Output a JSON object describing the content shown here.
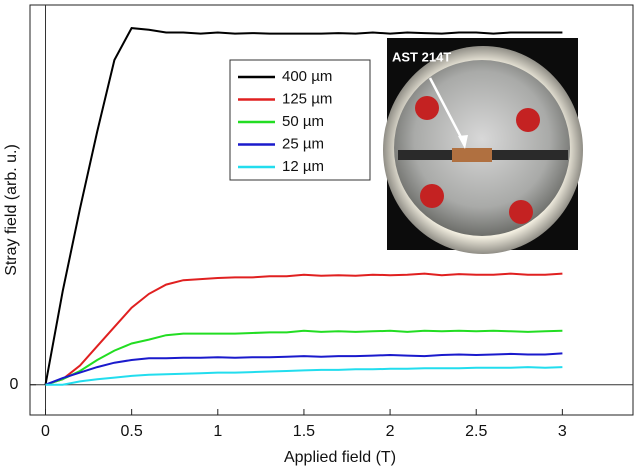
{
  "chart_data": {
    "type": "line",
    "x_label": "Applied field (T)",
    "y_label": "Stray field (arb. u.)",
    "annotation": "AST 214T",
    "x": [
      0,
      0.1,
      0.2,
      0.3,
      0.4,
      0.5,
      0.6,
      0.7,
      0.8,
      0.9,
      1,
      1.1,
      1.2,
      1.3,
      1.4,
      1.5,
      1.6,
      1.7,
      1.8,
      1.9,
      2,
      2.1,
      2.2,
      2.3,
      2.4,
      2.5,
      2.6,
      2.7,
      2.8,
      2.9,
      3
    ],
    "series": [
      {
        "name": "400 µm",
        "color": "#000000",
        "values": [
          0,
          1.7,
          3.2,
          4.6,
          5.9,
          6.48,
          6.45,
          6.4,
          6.4,
          6.38,
          6.4,
          6.38,
          6.39,
          6.38,
          6.38,
          6.38,
          6.38,
          6.39,
          6.38,
          6.4,
          6.38,
          6.4,
          6.39,
          6.38,
          6.4,
          6.4,
          6.38,
          6.4,
          6.4,
          6.4,
          6.4
        ]
      },
      {
        "name": "125 µm",
        "color": "#e02020",
        "values": [
          0,
          0.1,
          0.35,
          0.7,
          1.05,
          1.4,
          1.65,
          1.82,
          1.9,
          1.92,
          1.94,
          1.95,
          1.95,
          1.97,
          1.97,
          2.0,
          1.98,
          1.99,
          1.98,
          2.0,
          1.99,
          2.0,
          2.02,
          1.99,
          2.01,
          2.0,
          2.0,
          2.02,
          2.0,
          2.0,
          2.02
        ]
      },
      {
        "name": "50 µm",
        "color": "#22dd22",
        "values": [
          0,
          0.1,
          0.25,
          0.45,
          0.62,
          0.75,
          0.82,
          0.9,
          0.93,
          0.93,
          0.93,
          0.93,
          0.94,
          0.95,
          0.95,
          0.98,
          0.96,
          0.97,
          0.96,
          0.97,
          0.98,
          0.96,
          0.98,
          0.97,
          0.98,
          0.97,
          0.98,
          0.97,
          0.96,
          0.97,
          0.98
        ]
      },
      {
        "name": "25 µm",
        "color": "#1a1acc",
        "values": [
          0,
          0.12,
          0.22,
          0.32,
          0.4,
          0.45,
          0.48,
          0.48,
          0.49,
          0.49,
          0.5,
          0.49,
          0.5,
          0.5,
          0.51,
          0.52,
          0.51,
          0.52,
          0.52,
          0.53,
          0.54,
          0.53,
          0.52,
          0.54,
          0.55,
          0.54,
          0.55,
          0.56,
          0.55,
          0.55,
          0.57
        ]
      },
      {
        "name": "12 µm",
        "color": "#22ddee",
        "values": [
          0,
          0.0,
          0.06,
          0.1,
          0.13,
          0.16,
          0.18,
          0.19,
          0.2,
          0.21,
          0.22,
          0.22,
          0.23,
          0.24,
          0.25,
          0.26,
          0.27,
          0.27,
          0.28,
          0.28,
          0.29,
          0.29,
          0.3,
          0.3,
          0.3,
          0.31,
          0.31,
          0.31,
          0.32,
          0.31,
          0.32
        ]
      }
    ],
    "xlim": [
      -0.09,
      3.41
    ],
    "ylim": [
      -0.55,
      6.9
    ],
    "xticks": [
      0,
      0.5,
      1,
      1.5,
      2,
      2.5,
      3
    ],
    "yticks": [
      0
    ]
  }
}
